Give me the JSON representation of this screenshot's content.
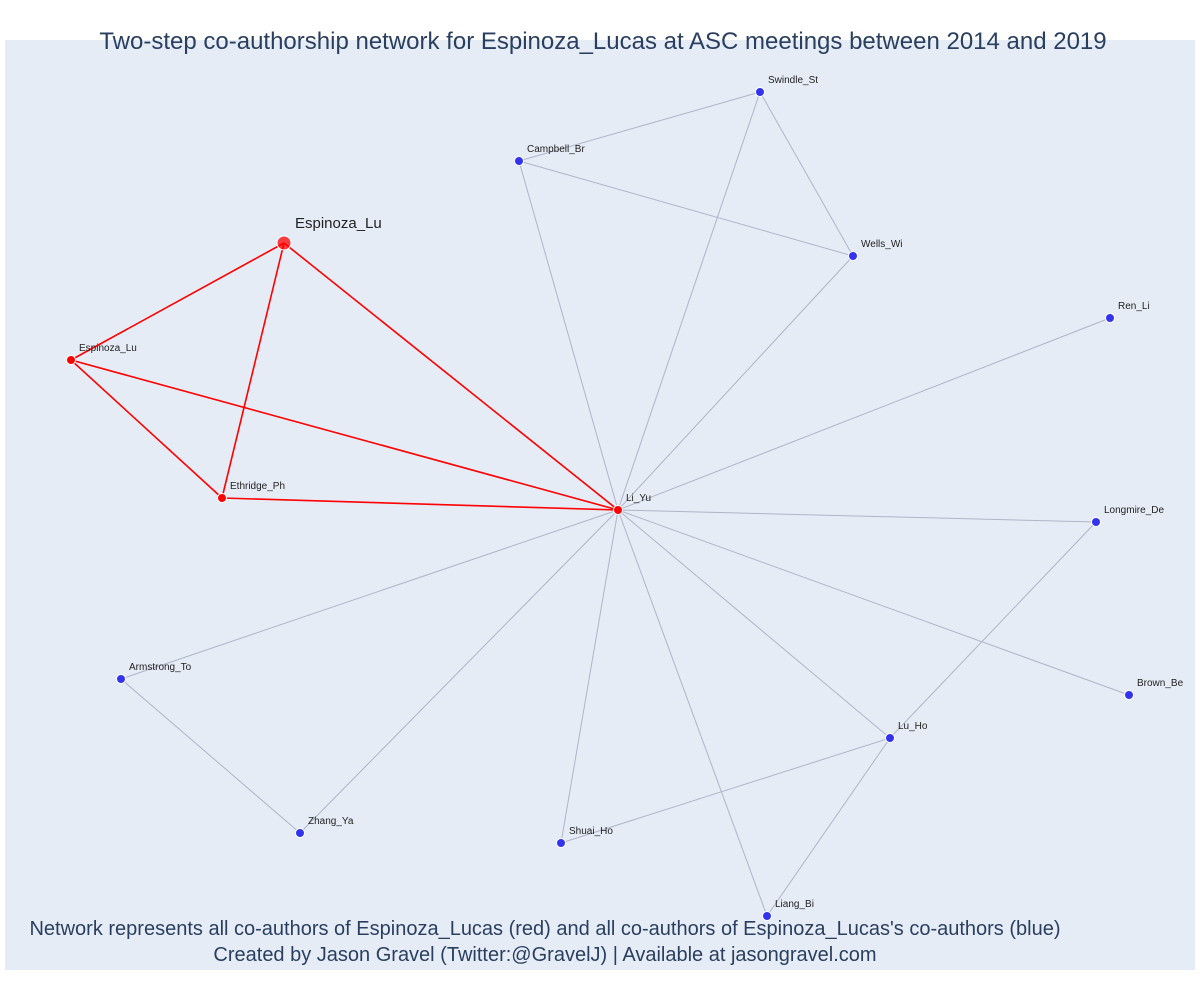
{
  "title": "Two-step co-authorship network for Espinoza_Lucas at ASC meetings between 2014 and 2019",
  "caption_line_1": "Network represents all co-authors of Espinoza_Lucas (red) and all co-authors of Espinoza_Lucas's co-authors (blue)",
  "caption_line_2": "Created by Jason Gravel (Twitter:@GravelJ) | Available at jasongravel.com",
  "colors": {
    "background": "#e5ecf6",
    "first_step_node": "#ff0000",
    "first_step_edge": "#ff0000",
    "second_step_node": "#3333ee",
    "second_step_edge": "#b0b4c8"
  },
  "nodes": [
    {
      "id": "ego",
      "label": "Espinoza_Lu",
      "group": "ego"
    },
    {
      "id": "espinoza2",
      "label": "Espinoza_Lu",
      "group": "first"
    },
    {
      "id": "ethridge",
      "label": "Ethridge_Ph",
      "group": "first"
    },
    {
      "id": "liyu",
      "label": "Li_Yu",
      "group": "first"
    },
    {
      "id": "campbell",
      "label": "Campbell_Br",
      "group": "second"
    },
    {
      "id": "swindle",
      "label": "Swindle_St",
      "group": "second"
    },
    {
      "id": "wells",
      "label": "Wells_Wi",
      "group": "second"
    },
    {
      "id": "ren",
      "label": "Ren_Li",
      "group": "second"
    },
    {
      "id": "longmire",
      "label": "Longmire_De",
      "group": "second"
    },
    {
      "id": "brown",
      "label": "Brown_Be",
      "group": "second"
    },
    {
      "id": "luho",
      "label": "Lu_Ho",
      "group": "second"
    },
    {
      "id": "liang",
      "label": "Liang_Bi",
      "group": "second"
    },
    {
      "id": "shuai",
      "label": "Shuai_Ho",
      "group": "second"
    },
    {
      "id": "zhang",
      "label": "Zhang_Ya",
      "group": "second"
    },
    {
      "id": "armstrong",
      "label": "Armstrong_To",
      "group": "second"
    }
  ],
  "edges": [
    [
      "ego",
      "espinoza2",
      "first"
    ],
    [
      "ego",
      "ethridge",
      "first"
    ],
    [
      "ego",
      "liyu",
      "first"
    ],
    [
      "espinoza2",
      "ethridge",
      "first"
    ],
    [
      "espinoza2",
      "liyu",
      "first"
    ],
    [
      "ethridge",
      "liyu",
      "first"
    ],
    [
      "liyu",
      "campbell",
      "second"
    ],
    [
      "liyu",
      "swindle",
      "second"
    ],
    [
      "liyu",
      "wells",
      "second"
    ],
    [
      "liyu",
      "ren",
      "second"
    ],
    [
      "liyu",
      "longmire",
      "second"
    ],
    [
      "liyu",
      "brown",
      "second"
    ],
    [
      "liyu",
      "luho",
      "second"
    ],
    [
      "liyu",
      "liang",
      "second"
    ],
    [
      "liyu",
      "shuai",
      "second"
    ],
    [
      "liyu",
      "zhang",
      "second"
    ],
    [
      "liyu",
      "armstrong",
      "second"
    ],
    [
      "campbell",
      "swindle",
      "second"
    ],
    [
      "campbell",
      "wells",
      "second"
    ],
    [
      "swindle",
      "wells",
      "second"
    ],
    [
      "longmire",
      "luho",
      "second"
    ],
    [
      "luho",
      "liang",
      "second"
    ],
    [
      "luho",
      "shuai",
      "second"
    ],
    [
      "armstrong",
      "zhang",
      "second"
    ]
  ]
}
